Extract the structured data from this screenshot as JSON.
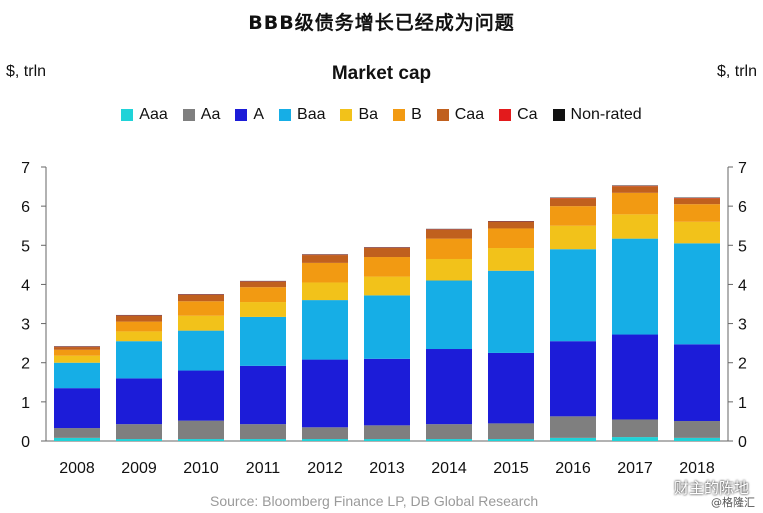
{
  "header": {
    "top_title": "BBB级债务增长已经成为问题",
    "unit_left": "$, trln",
    "unit_right": "$, trln"
  },
  "footer": {
    "source": "Source: Bloomberg Finance LP, DB Global Research",
    "watermark": "财主的陈地",
    "watermark_sub": "@格隆汇"
  },
  "chart_data": {
    "type": "bar",
    "stacked": true,
    "title": "Market cap",
    "xlabel": "",
    "ylabel": "$, trln",
    "ylim": [
      0,
      7
    ],
    "y_ticks": [
      0,
      1,
      2,
      3,
      4,
      5,
      6,
      7
    ],
    "grid": false,
    "legend_position": "top",
    "categories": [
      "2008",
      "2009",
      "2010",
      "2011",
      "2012",
      "2013",
      "2014",
      "2015",
      "2016",
      "2017",
      "2018"
    ],
    "series": [
      {
        "name": "Aaa",
        "color": "#1fd3d8",
        "values": [
          0.08,
          0.05,
          0.05,
          0.05,
          0.05,
          0.05,
          0.05,
          0.05,
          0.08,
          0.1,
          0.08
        ]
      },
      {
        "name": "Aa",
        "color": "#7f7f7f",
        "values": [
          0.25,
          0.38,
          0.47,
          0.38,
          0.3,
          0.35,
          0.38,
          0.4,
          0.55,
          0.45,
          0.43
        ]
      },
      {
        "name": "A",
        "color": "#1c1cd8",
        "values": [
          1.02,
          1.17,
          1.28,
          1.49,
          1.73,
          1.7,
          1.92,
          1.8,
          1.92,
          2.17,
          1.96
        ]
      },
      {
        "name": "Baa",
        "color": "#16aee6",
        "values": [
          0.65,
          0.95,
          1.02,
          1.25,
          1.52,
          1.62,
          1.75,
          2.1,
          2.35,
          2.45,
          2.58
        ]
      },
      {
        "name": "Ba",
        "color": "#f2c21a",
        "values": [
          0.18,
          0.25,
          0.38,
          0.38,
          0.45,
          0.48,
          0.55,
          0.58,
          0.6,
          0.62,
          0.55
        ]
      },
      {
        "name": "B",
        "color": "#f29a12",
        "values": [
          0.15,
          0.25,
          0.37,
          0.38,
          0.5,
          0.5,
          0.52,
          0.5,
          0.5,
          0.55,
          0.45
        ]
      },
      {
        "name": "Caa",
        "color": "#c0601e",
        "values": [
          0.07,
          0.15,
          0.16,
          0.14,
          0.2,
          0.23,
          0.23,
          0.17,
          0.2,
          0.17,
          0.15
        ]
      },
      {
        "name": "Ca",
        "color": "#e31a1c",
        "values": [
          0.01,
          0.01,
          0.01,
          0.01,
          0.01,
          0.01,
          0.01,
          0.01,
          0.01,
          0.01,
          0.01
        ]
      },
      {
        "name": "Non-rated",
        "color": "#111111",
        "values": [
          0.01,
          0.01,
          0.01,
          0.01,
          0.01,
          0.01,
          0.01,
          0.01,
          0.01,
          0.01,
          0.01
        ]
      }
    ]
  }
}
